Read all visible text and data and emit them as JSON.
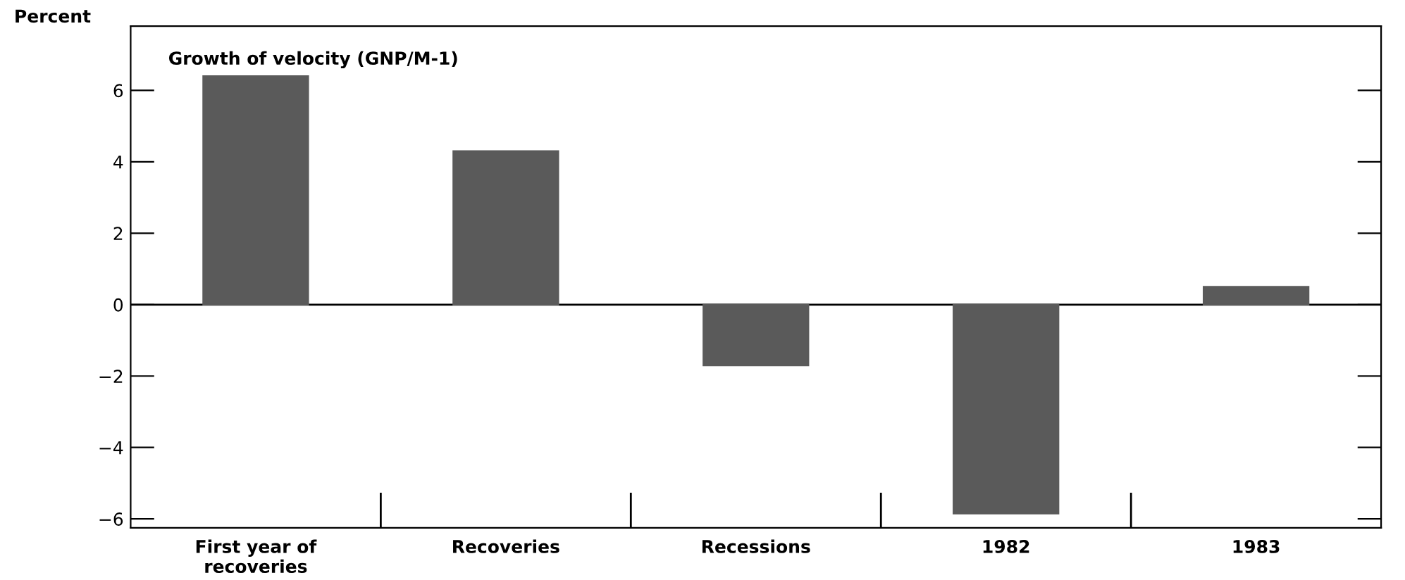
{
  "chart_data": {
    "type": "bar",
    "title": "Growth of velocity (GNP/M-1)",
    "ylabel": "Percent",
    "categories": [
      "First year of\nrecoveries",
      "Recoveries",
      "Recessions",
      "1982",
      "1983"
    ],
    "values": [
      6.4,
      4.3,
      -1.7,
      -5.85,
      0.5
    ],
    "color": "#5a5a5a",
    "ylim": [
      -6.25,
      7.8
    ],
    "yticks": [
      {
        "value": -6,
        "label": "−6"
      },
      {
        "value": -4,
        "label": "−4"
      },
      {
        "value": -2,
        "label": "−2"
      },
      0,
      2,
      4,
      6
    ],
    "ref_lines": [
      {
        "axis": "y",
        "value": 0,
        "color": "#000000"
      }
    ],
    "grid": false,
    "legend": false
  }
}
